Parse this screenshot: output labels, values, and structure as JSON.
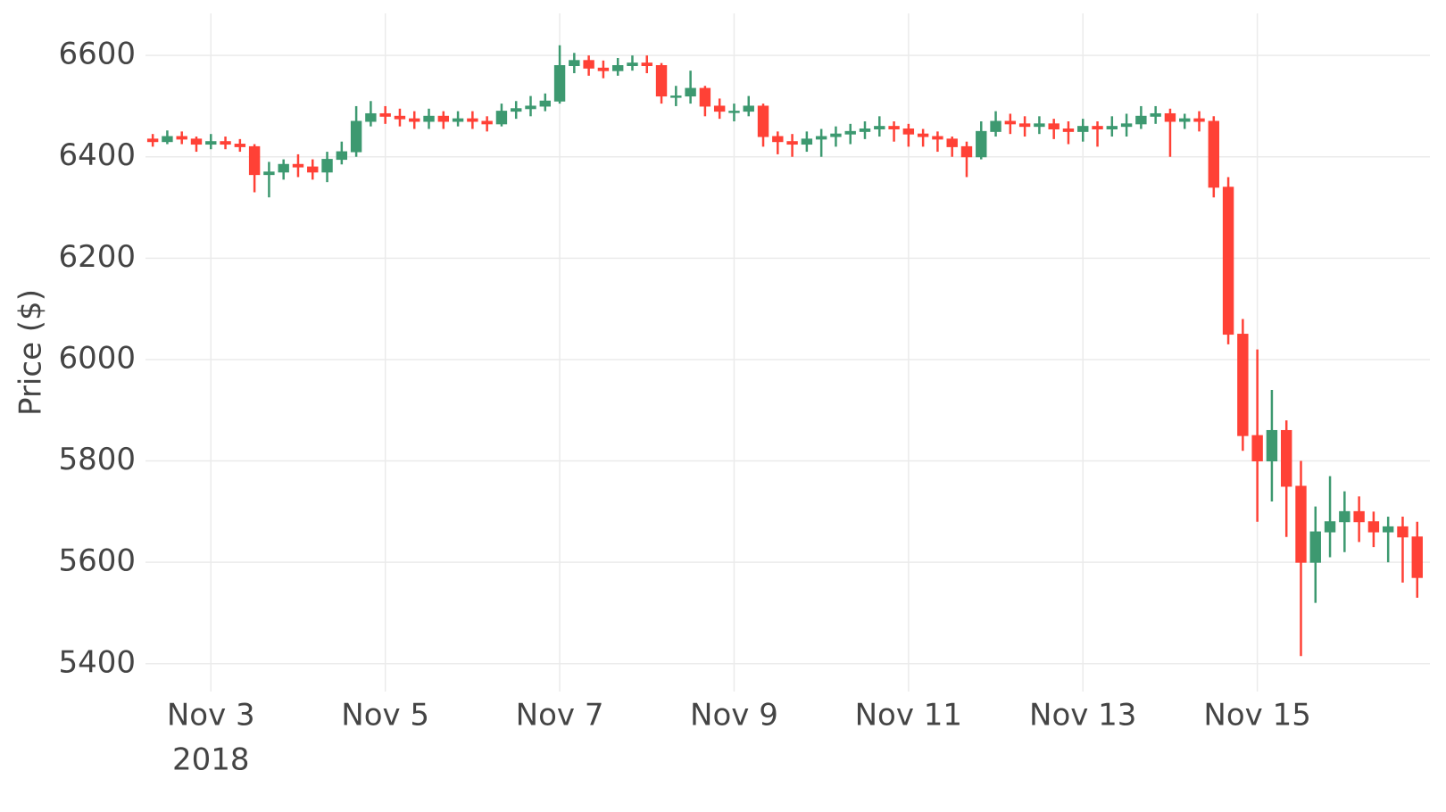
{
  "chart_data": {
    "type": "candlestick",
    "y_label": "Price ($)",
    "xlim": [
      "2018-11-02 06:00",
      "2018-11-16 23:30"
    ],
    "xticks": [
      {
        "value": "2018-11-03",
        "label": "Nov 3"
      },
      {
        "value": "2018-11-05",
        "label": "Nov 5"
      },
      {
        "value": "2018-11-07",
        "label": "Nov 7"
      },
      {
        "value": "2018-11-09",
        "label": "Nov 9"
      },
      {
        "value": "2018-11-11",
        "label": "Nov 11"
      },
      {
        "value": "2018-11-13",
        "label": "Nov 13"
      },
      {
        "value": "2018-11-15",
        "label": "Nov 15"
      }
    ],
    "x_year_label": "2018",
    "ylim": [
      5345,
      6683
    ],
    "yticks": [
      5400,
      5600,
      5800,
      6000,
      6200,
      6400,
      6600
    ],
    "grid": true,
    "increasing_color": "#3d9970",
    "decreasing_color": "#ff4136",
    "x": [
      "2018-11-02 08:00",
      "2018-11-02 12:00",
      "2018-11-02 16:00",
      "2018-11-02 20:00",
      "2018-11-03 00:00",
      "2018-11-03 04:00",
      "2018-11-03 08:00",
      "2018-11-03 12:00",
      "2018-11-03 16:00",
      "2018-11-03 20:00",
      "2018-11-04 00:00",
      "2018-11-04 04:00",
      "2018-11-04 08:00",
      "2018-11-04 12:00",
      "2018-11-04 16:00",
      "2018-11-04 20:00",
      "2018-11-05 00:00",
      "2018-11-05 04:00",
      "2018-11-05 08:00",
      "2018-11-05 12:00",
      "2018-11-05 16:00",
      "2018-11-05 20:00",
      "2018-11-06 00:00",
      "2018-11-06 04:00",
      "2018-11-06 08:00",
      "2018-11-06 12:00",
      "2018-11-06 16:00",
      "2018-11-06 20:00",
      "2018-11-07 00:00",
      "2018-11-07 04:00",
      "2018-11-07 08:00",
      "2018-11-07 12:00",
      "2018-11-07 16:00",
      "2018-11-07 20:00",
      "2018-11-08 00:00",
      "2018-11-08 04:00",
      "2018-11-08 08:00",
      "2018-11-08 12:00",
      "2018-11-08 16:00",
      "2018-11-08 20:00",
      "2018-11-09 00:00",
      "2018-11-09 04:00",
      "2018-11-09 08:00",
      "2018-11-09 12:00",
      "2018-11-09 16:00",
      "2018-11-09 20:00",
      "2018-11-10 00:00",
      "2018-11-10 04:00",
      "2018-11-10 08:00",
      "2018-11-10 12:00",
      "2018-11-10 16:00",
      "2018-11-10 20:00",
      "2018-11-11 00:00",
      "2018-11-11 04:00",
      "2018-11-11 08:00",
      "2018-11-11 12:00",
      "2018-11-11 16:00",
      "2018-11-11 20:00",
      "2018-11-12 00:00",
      "2018-11-12 04:00",
      "2018-11-12 08:00",
      "2018-11-12 12:00",
      "2018-11-12 16:00",
      "2018-11-12 20:00",
      "2018-11-13 00:00",
      "2018-11-13 04:00",
      "2018-11-13 08:00",
      "2018-11-13 12:00",
      "2018-11-13 16:00",
      "2018-11-13 20:00",
      "2018-11-14 00:00",
      "2018-11-14 04:00",
      "2018-11-14 08:00",
      "2018-11-14 12:00",
      "2018-11-14 16:00",
      "2018-11-14 20:00",
      "2018-11-15 00:00",
      "2018-11-15 04:00",
      "2018-11-15 08:00",
      "2018-11-15 12:00",
      "2018-11-15 16:00",
      "2018-11-15 20:00",
      "2018-11-16 00:00",
      "2018-11-16 04:00",
      "2018-11-16 08:00",
      "2018-11-16 12:00",
      "2018-11-16 16:00",
      "2018-11-16 20:00"
    ],
    "open": [
      6435,
      6430,
      6440,
      6435,
      6425,
      6430,
      6425,
      6420,
      6365,
      6370,
      6385,
      6380,
      6370,
      6395,
      6410,
      6470,
      6485,
      6480,
      6475,
      6470,
      6480,
      6470,
      6475,
      6470,
      6465,
      6490,
      6495,
      6500,
      6510,
      6580,
      6590,
      6575,
      6570,
      6580,
      6585,
      6580,
      6520,
      6520,
      6535,
      6500,
      6490,
      6490,
      6500,
      6440,
      6430,
      6425,
      6435,
      6440,
      6445,
      6450,
      6455,
      6460,
      6455,
      6445,
      6440,
      6435,
      6420,
      6400,
      6450,
      6470,
      6465,
      6460,
      6465,
      6455,
      6450,
      6460,
      6455,
      6460,
      6465,
      6480,
      6485,
      6470,
      6475,
      6470,
      6340,
      6050,
      5850,
      5800,
      5860,
      5750,
      5600,
      5660,
      5680,
      5700,
      5680,
      5660,
      5670,
      5650
    ],
    "high": [
      6445,
      6452,
      6450,
      6440,
      6445,
      6440,
      6435,
      6425,
      6390,
      6395,
      6405,
      6395,
      6410,
      6430,
      6500,
      6510,
      6500,
      6495,
      6490,
      6495,
      6490,
      6490,
      6490,
      6480,
      6505,
      6510,
      6520,
      6525,
      6620,
      6605,
      6600,
      6590,
      6595,
      6600,
      6600,
      6585,
      6540,
      6570,
      6540,
      6515,
      6505,
      6520,
      6505,
      6450,
      6445,
      6450,
      6455,
      6460,
      6465,
      6470,
      6480,
      6470,
      6465,
      6455,
      6450,
      6440,
      6430,
      6470,
      6490,
      6485,
      6480,
      6480,
      6475,
      6470,
      6475,
      6470,
      6480,
      6485,
      6500,
      6500,
      6495,
      6485,
      6490,
      6480,
      6360,
      6080,
      6020,
      5940,
      5880,
      5800,
      5710,
      5770,
      5740,
      5730,
      5700,
      5690,
      5690,
      5680
    ],
    "low": [
      6420,
      6425,
      6425,
      6410,
      6415,
      6415,
      6410,
      6330,
      6320,
      6355,
      6360,
      6355,
      6350,
      6385,
      6400,
      6460,
      6465,
      6460,
      6455,
      6455,
      6455,
      6460,
      6455,
      6450,
      6460,
      6475,
      6480,
      6490,
      6505,
      6565,
      6560,
      6555,
      6560,
      6570,
      6565,
      6505,
      6500,
      6505,
      6480,
      6475,
      6470,
      6480,
      6420,
      6405,
      6400,
      6410,
      6400,
      6420,
      6425,
      6435,
      6440,
      6430,
      6420,
      6420,
      6410,
      6400,
      6360,
      6395,
      6440,
      6445,
      6440,
      6445,
      6435,
      6425,
      6430,
      6420,
      6440,
      6440,
      6455,
      6465,
      6400,
      6455,
      6450,
      6320,
      6030,
      5820,
      5680,
      5720,
      5650,
      5415,
      5520,
      5610,
      5620,
      5640,
      5630,
      5600,
      5560,
      5530
    ],
    "close": [
      6430,
      6440,
      6435,
      6425,
      6430,
      6425,
      6420,
      6365,
      6370,
      6385,
      6380,
      6370,
      6395,
      6410,
      6470,
      6485,
      6480,
      6475,
      6470,
      6480,
      6470,
      6475,
      6470,
      6465,
      6490,
      6495,
      6500,
      6510,
      6580,
      6590,
      6575,
      6570,
      6580,
      6585,
      6580,
      6520,
      6520,
      6535,
      6500,
      6490,
      6490,
      6500,
      6440,
      6430,
      6425,
      6435,
      6440,
      6445,
      6450,
      6455,
      6460,
      6455,
      6445,
      6440,
      6435,
      6420,
      6400,
      6450,
      6470,
      6465,
      6460,
      6465,
      6455,
      6450,
      6460,
      6455,
      6460,
      6465,
      6480,
      6485,
      6470,
      6475,
      6470,
      6340,
      6050,
      5850,
      5800,
      5860,
      5750,
      5600,
      5660,
      5680,
      5700,
      5680,
      5660,
      5670,
      5650,
      5570
    ]
  }
}
